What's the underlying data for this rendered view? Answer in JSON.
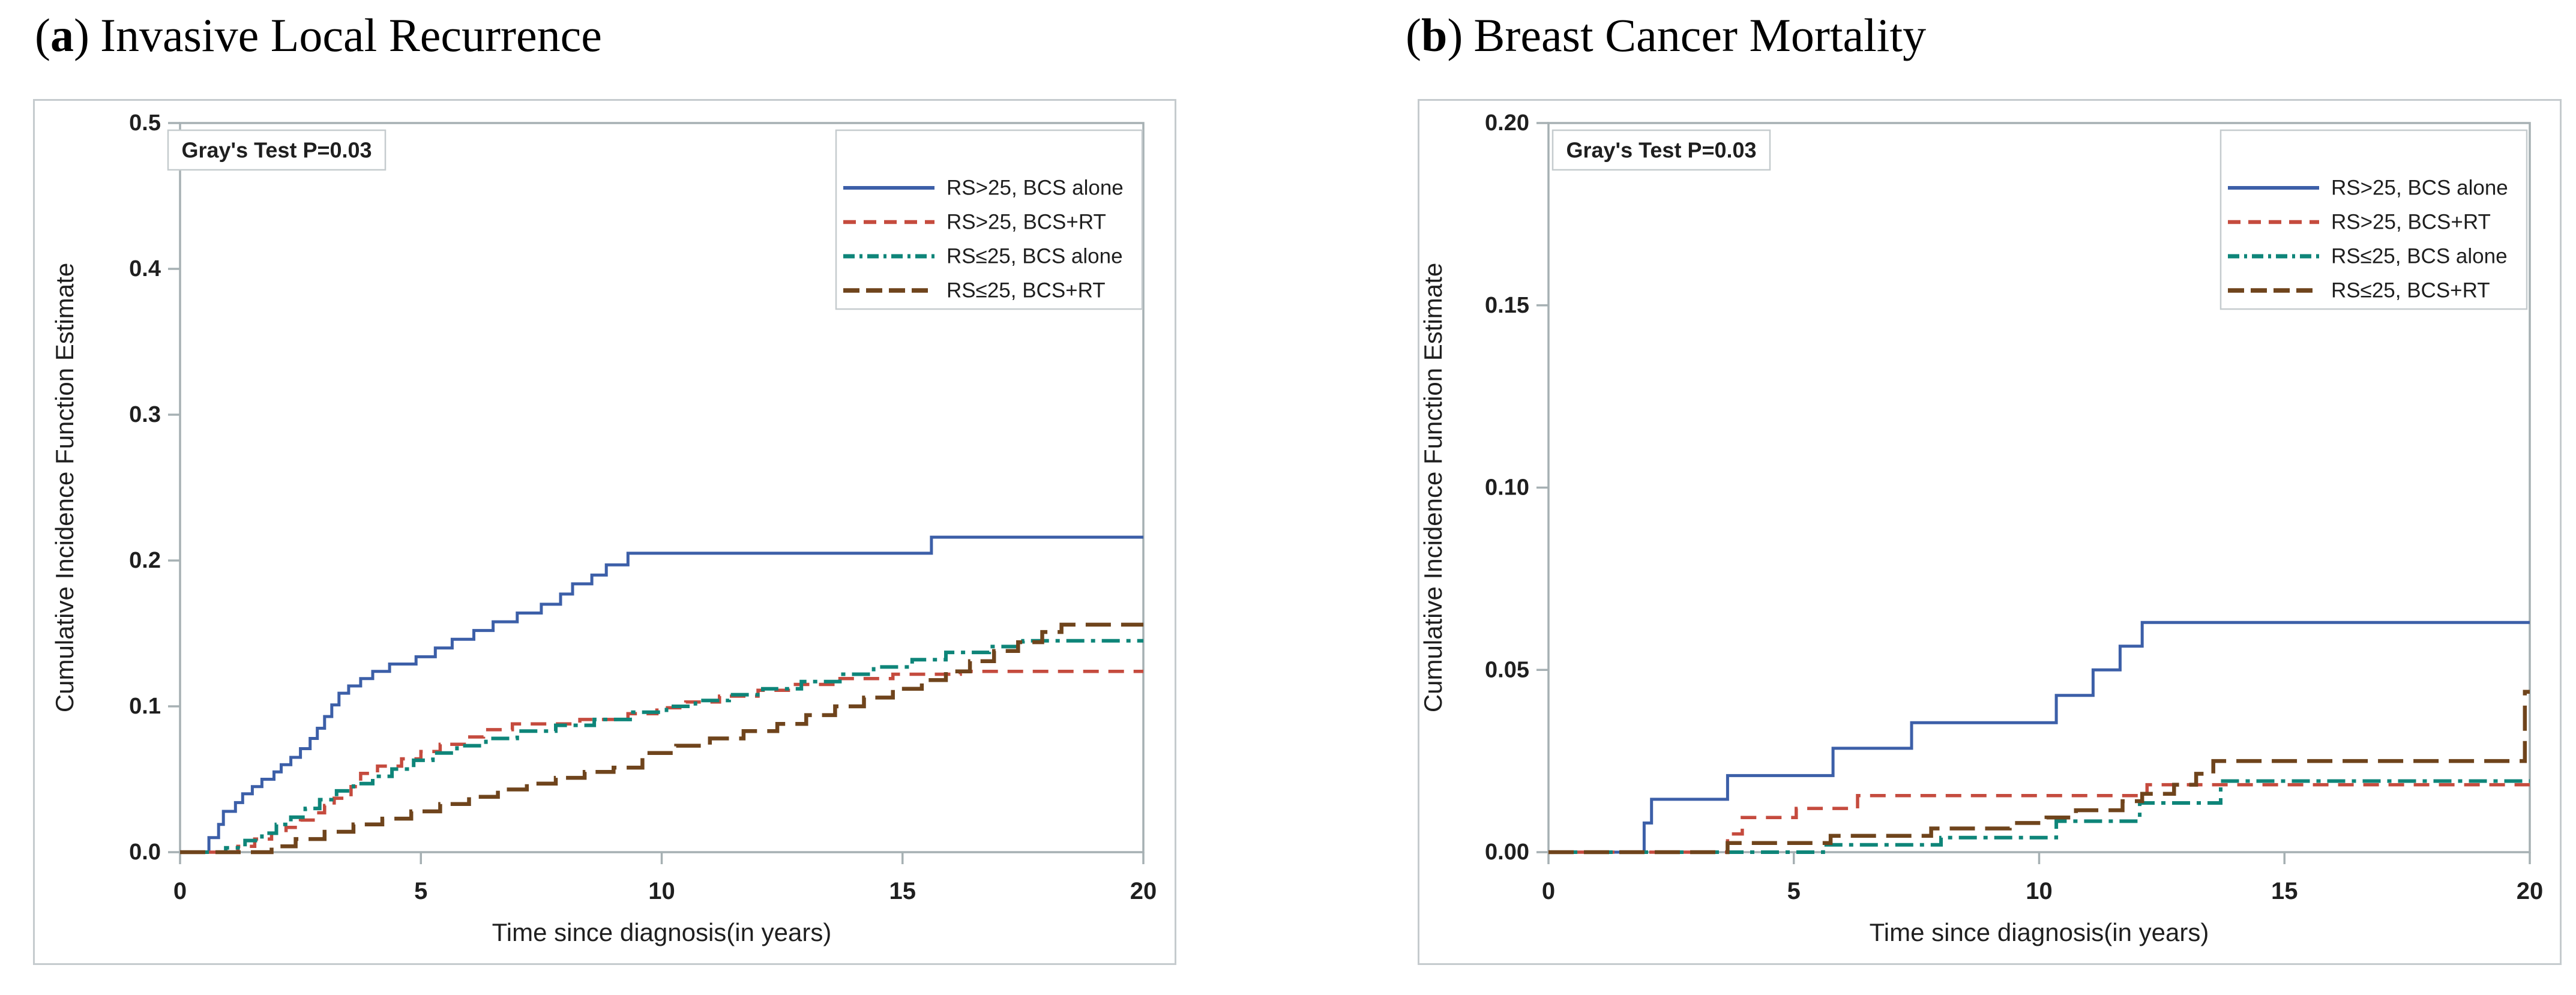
{
  "page": {
    "background": "#ffffff",
    "frame_color": "#c5cbce",
    "axis_color": "#a6b0b3",
    "text_color": "#1f1f1f"
  },
  "chart_data": [
    {
      "id": "a",
      "type": "line",
      "subtype": "cumulative-incidence-step",
      "prefix_open": "(",
      "title_letter": "a",
      "prefix_close": ")",
      "title": "Invasive Local Recurrence",
      "annotation": "Gray's Test P=0.03",
      "annotation_position": "top-left",
      "xlabel": "Time since diagnosis(in years)",
      "ylabel": "Cumulative Incidence Function Estimate",
      "xlim": [
        0,
        20
      ],
      "ylim": [
        0,
        0.5
      ],
      "x_ticks": [
        "0",
        "5",
        "10",
        "15",
        "20"
      ],
      "x_tick_values": [
        0,
        5,
        10,
        15,
        20
      ],
      "y_ticks": [
        {
          "v": 0.0,
          "label": "0.0"
        },
        {
          "v": 0.1,
          "label": "0.1"
        },
        {
          "v": 0.2,
          "label": "0.2"
        },
        {
          "v": 0.3,
          "label": "0.3"
        },
        {
          "v": 0.4,
          "label": "0.4"
        },
        {
          "v": 0.5,
          "label": "0.5"
        }
      ],
      "grid": "off",
      "legend_position": "top-right",
      "series": [
        {
          "name": "RS>25, BCS alone",
          "slug": "rs-over-25-bcs-alone",
          "color": "#3c5fa8",
          "style": "solid",
          "width": 5,
          "steps": [
            [
              0.6,
              0.01
            ],
            [
              0.8,
              0.019
            ],
            [
              0.9,
              0.028
            ],
            [
              1.15,
              0.034
            ],
            [
              1.3,
              0.04
            ],
            [
              1.5,
              0.045
            ],
            [
              1.7,
              0.05
            ],
            [
              1.95,
              0.055
            ],
            [
              2.1,
              0.06
            ],
            [
              2.3,
              0.065
            ],
            [
              2.5,
              0.071
            ],
            [
              2.7,
              0.078
            ],
            [
              2.85,
              0.085
            ],
            [
              3.0,
              0.093
            ],
            [
              3.15,
              0.101
            ],
            [
              3.3,
              0.109
            ],
            [
              3.5,
              0.114
            ],
            [
              3.75,
              0.119
            ],
            [
              4.0,
              0.124
            ],
            [
              4.35,
              0.129
            ],
            [
              4.9,
              0.134
            ],
            [
              5.3,
              0.14
            ],
            [
              5.65,
              0.146
            ],
            [
              6.1,
              0.152
            ],
            [
              6.5,
              0.158
            ],
            [
              7.0,
              0.164
            ],
            [
              7.5,
              0.17
            ],
            [
              7.9,
              0.177
            ],
            [
              8.15,
              0.184
            ],
            [
              8.55,
              0.19
            ],
            [
              8.85,
              0.197
            ],
            [
              9.3,
              0.205
            ],
            [
              15.6,
              0.216
            ]
          ]
        },
        {
          "name": "RS>25, BCS+RT",
          "slug": "rs-over-25-bcs-rt",
          "color": "#c54b3e",
          "style": "dash",
          "width": 5.5,
          "steps": [
            [
              1.2,
              0.004
            ],
            [
              1.55,
              0.009
            ],
            [
              1.9,
              0.013
            ],
            [
              2.2,
              0.017
            ],
            [
              2.5,
              0.022
            ],
            [
              2.8,
              0.027
            ],
            [
              3.0,
              0.032
            ],
            [
              3.2,
              0.037
            ],
            [
              3.55,
              0.045
            ],
            [
              3.75,
              0.054
            ],
            [
              4.1,
              0.059
            ],
            [
              4.6,
              0.064
            ],
            [
              5.0,
              0.069
            ],
            [
              5.4,
              0.074
            ],
            [
              5.9,
              0.079
            ],
            [
              6.3,
              0.084
            ],
            [
              6.9,
              0.088
            ],
            [
              8.3,
              0.091
            ],
            [
              9.3,
              0.095
            ],
            [
              9.9,
              0.099
            ],
            [
              10.5,
              0.103
            ],
            [
              11.2,
              0.107
            ],
            [
              12.0,
              0.111
            ],
            [
              12.7,
              0.115
            ],
            [
              13.6,
              0.119
            ],
            [
              14.8,
              0.122
            ],
            [
              16.2,
              0.124
            ]
          ]
        },
        {
          "name": "RS≤25, BCS alone",
          "slug": "rs-le-25-bcs-alone",
          "color": "#0e8579",
          "style": "dashdot",
          "width": 6,
          "steps": [
            [
              0.95,
              0.003
            ],
            [
              1.35,
              0.008
            ],
            [
              1.7,
              0.013
            ],
            [
              2.0,
              0.019
            ],
            [
              2.3,
              0.024
            ],
            [
              2.6,
              0.03
            ],
            [
              2.9,
              0.036
            ],
            [
              3.25,
              0.042
            ],
            [
              3.6,
              0.047
            ],
            [
              4.0,
              0.052
            ],
            [
              4.4,
              0.057
            ],
            [
              4.85,
              0.063
            ],
            [
              5.25,
              0.068
            ],
            [
              5.75,
              0.073
            ],
            [
              6.35,
              0.078
            ],
            [
              7.0,
              0.083
            ],
            [
              7.8,
              0.087
            ],
            [
              8.6,
              0.091
            ],
            [
              9.4,
              0.096
            ],
            [
              10.1,
              0.1
            ],
            [
              10.7,
              0.104
            ],
            [
              11.4,
              0.108
            ],
            [
              12.1,
              0.112
            ],
            [
              12.9,
              0.117
            ],
            [
              13.7,
              0.122
            ],
            [
              14.4,
              0.127
            ],
            [
              15.2,
              0.132
            ],
            [
              15.9,
              0.137
            ],
            [
              16.8,
              0.141
            ],
            [
              17.5,
              0.145
            ]
          ]
        },
        {
          "name": "RS≤25, BCS+RT",
          "slug": "rs-le-25-bcs-rt",
          "color": "#6f441c",
          "style": "longdash",
          "width": 6.5,
          "steps": [
            [
              1.9,
              0.004
            ],
            [
              2.4,
              0.009
            ],
            [
              3.0,
              0.014
            ],
            [
              3.6,
              0.019
            ],
            [
              4.2,
              0.023
            ],
            [
              4.8,
              0.028
            ],
            [
              5.4,
              0.033
            ],
            [
              6.0,
              0.038
            ],
            [
              6.6,
              0.043
            ],
            [
              7.2,
              0.047
            ],
            [
              7.8,
              0.051
            ],
            [
              8.4,
              0.055
            ],
            [
              9.0,
              0.058
            ],
            [
              9.6,
              0.068
            ],
            [
              10.3,
              0.073
            ],
            [
              11.0,
              0.078
            ],
            [
              11.7,
              0.083
            ],
            [
              12.4,
              0.088
            ],
            [
              13.0,
              0.094
            ],
            [
              13.6,
              0.1
            ],
            [
              14.2,
              0.106
            ],
            [
              14.8,
              0.112
            ],
            [
              15.4,
              0.118
            ],
            [
              15.9,
              0.124
            ],
            [
              16.4,
              0.131
            ],
            [
              16.9,
              0.138
            ],
            [
              17.4,
              0.144
            ],
            [
              17.9,
              0.151
            ],
            [
              18.3,
              0.156
            ]
          ]
        }
      ]
    },
    {
      "id": "b",
      "type": "line",
      "subtype": "cumulative-incidence-step",
      "prefix_open": "(",
      "title_letter": "b",
      "prefix_close": ")",
      "title": "Breast Cancer Mortality",
      "annotation": "Gray's Test P=0.03",
      "annotation_position": "top-left",
      "xlabel": "Time since diagnosis(in years)",
      "ylabel": "Cumulative Incidence Function Estimate",
      "xlim": [
        0,
        20
      ],
      "ylim": [
        0,
        0.2
      ],
      "x_ticks": [
        "0",
        "5",
        "10",
        "15",
        "20"
      ],
      "x_tick_values": [
        0,
        5,
        10,
        15,
        20
      ],
      "y_ticks": [
        {
          "v": 0.0,
          "label": "0.00"
        },
        {
          "v": 0.05,
          "label": "0.05"
        },
        {
          "v": 0.1,
          "label": "0.10"
        },
        {
          "v": 0.15,
          "label": "0.15"
        },
        {
          "v": 0.2,
          "label": "0.20"
        }
      ],
      "grid": "off",
      "legend_position": "top-right",
      "series": [
        {
          "name": "RS>25, BCS alone",
          "slug": "rs-over-25-bcs-alone",
          "color": "#3c5fa8",
          "style": "solid",
          "width": 5,
          "steps": [
            [
              1.95,
              0.008
            ],
            [
              2.1,
              0.0145
            ],
            [
              3.65,
              0.021
            ],
            [
              5.8,
              0.0285
            ],
            [
              7.4,
              0.0355
            ],
            [
              10.35,
              0.043
            ],
            [
              11.1,
              0.05
            ],
            [
              11.65,
              0.0565
            ],
            [
              12.1,
              0.063
            ]
          ]
        },
        {
          "name": "RS>25, BCS+RT",
          "slug": "rs-over-25-bcs-rt",
          "color": "#c54b3e",
          "style": "dash",
          "width": 5.5,
          "steps": [
            [
              3.65,
              0.005
            ],
            [
              3.95,
              0.0095
            ],
            [
              5.05,
              0.012
            ],
            [
              6.3,
              0.0155
            ],
            [
              12.2,
              0.0185
            ]
          ]
        },
        {
          "name": "RS≤25, BCS alone",
          "slug": "rs-le-25-bcs-alone",
          "color": "#0e8579",
          "style": "dashdot",
          "width": 6,
          "steps": [
            [
              5.6,
              0.002
            ],
            [
              8.0,
              0.004
            ],
            [
              10.35,
              0.0085
            ],
            [
              12.05,
              0.0135
            ],
            [
              13.7,
              0.0195
            ]
          ]
        },
        {
          "name": "RS≤25, BCS+RT",
          "slug": "rs-le-25-bcs-rt",
          "color": "#6f441c",
          "style": "longdash",
          "width": 6.5,
          "steps": [
            [
              3.65,
              0.0025
            ],
            [
              5.75,
              0.0045
            ],
            [
              7.8,
              0.0065
            ],
            [
              9.4,
              0.008
            ],
            [
              10.15,
              0.0095
            ],
            [
              10.75,
              0.0115
            ],
            [
              11.7,
              0.014
            ],
            [
              12.1,
              0.016
            ],
            [
              12.75,
              0.0185
            ],
            [
              13.2,
              0.0215
            ],
            [
              13.55,
              0.025
            ],
            [
              19.9,
              0.044
            ]
          ]
        }
      ]
    }
  ]
}
